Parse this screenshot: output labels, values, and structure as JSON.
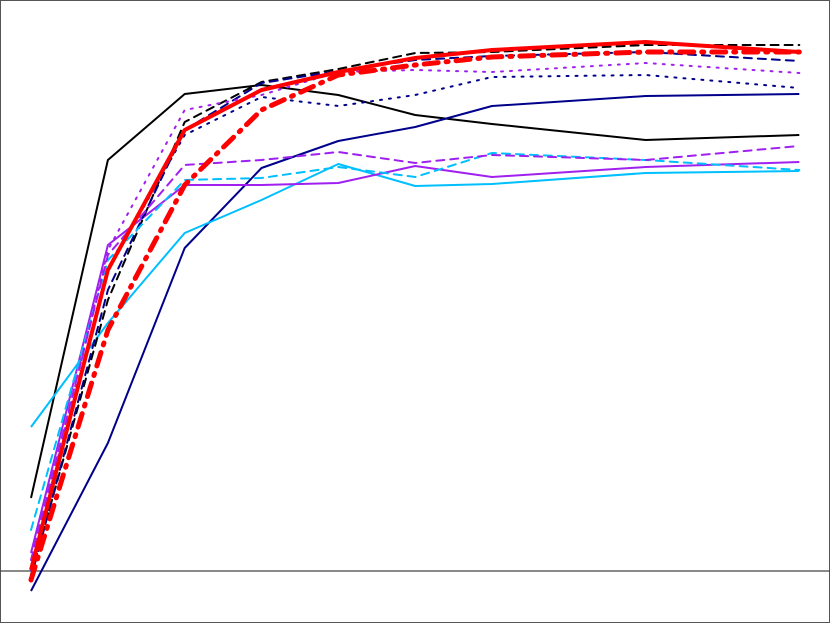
{
  "chart_data": {
    "type": "line",
    "title": "",
    "xlabel": "",
    "ylabel": "",
    "xlim": [
      0.596,
      11.4
    ],
    "ylim": [
      -0.104,
      1.142
    ],
    "grid": false,
    "legend": "none",
    "zero_line": {
      "y": 0,
      "color": "#444444"
    },
    "x": [
      1,
      2,
      3,
      4,
      5,
      6,
      7,
      9,
      11
    ],
    "series": [
      {
        "color": "#000000",
        "style": "solid",
        "width": 2,
        "values": [
          0.146,
          0.822,
          0.954,
          0.972,
          0.952,
          0.912,
          0.894,
          0.862,
          0.872
        ]
      },
      {
        "color": "#00008b",
        "style": "solid",
        "width": 2,
        "values": [
          -0.04,
          0.256,
          0.646,
          0.806,
          0.86,
          0.888,
          0.93,
          0.95,
          0.954
        ]
      },
      {
        "color": "#00bfff",
        "style": "solid",
        "width": 2,
        "values": [
          0.288,
          0.496,
          0.676,
          0.742,
          0.814,
          0.77,
          0.774,
          0.796,
          0.8
        ]
      },
      {
        "color": "#a020f0",
        "style": "solid",
        "width": 2,
        "values": [
          0.036,
          0.652,
          0.772,
          0.772,
          0.776,
          0.81,
          0.788,
          0.808,
          0.818
        ]
      },
      {
        "color": "#000000",
        "style": "dashed",
        "width": 2,
        "values": [
          -0.008,
          0.542,
          0.898,
          0.978,
          1.004,
          1.036,
          1.038,
          1.052,
          1.052
        ]
      },
      {
        "color": "#00008b",
        "style": "dashed",
        "width": 2,
        "values": [
          -0.014,
          0.562,
          0.882,
          0.976,
          1.0,
          1.022,
          1.03,
          1.038,
          1.02
        ]
      },
      {
        "color": "#00bfff",
        "style": "dashed",
        "width": 2,
        "values": [
          0.082,
          0.622,
          0.782,
          0.786,
          0.808,
          0.788,
          0.836,
          0.822,
          0.802
        ]
      },
      {
        "color": "#a020f0",
        "style": "dashed",
        "width": 2,
        "values": [
          0.022,
          0.632,
          0.812,
          0.822,
          0.838,
          0.816,
          0.832,
          0.822,
          0.85
        ]
      },
      {
        "color": "#a020f0",
        "style": "dotted",
        "width": 2,
        "values": [
          0.002,
          0.642,
          0.922,
          0.952,
          0.998,
          1.002,
          0.998,
          1.016,
          0.996
        ]
      },
      {
        "color": "#00008b",
        "style": "dotted",
        "width": 2,
        "values": [
          -0.008,
          0.602,
          0.872,
          0.948,
          0.93,
          0.952,
          0.988,
          0.992,
          0.966
        ]
      },
      {
        "color": "#ff0000",
        "style": "solid",
        "width": 4,
        "values": [
          0.002,
          0.602,
          0.882,
          0.962,
          0.998,
          1.026,
          1.042,
          1.058,
          1.038
        ]
      },
      {
        "color": "#ff0000",
        "style": "dashdot",
        "width": 5,
        "values": [
          -0.018,
          0.482,
          0.772,
          0.922,
          0.992,
          1.012,
          1.028,
          1.038,
          1.038
        ]
      }
    ]
  }
}
